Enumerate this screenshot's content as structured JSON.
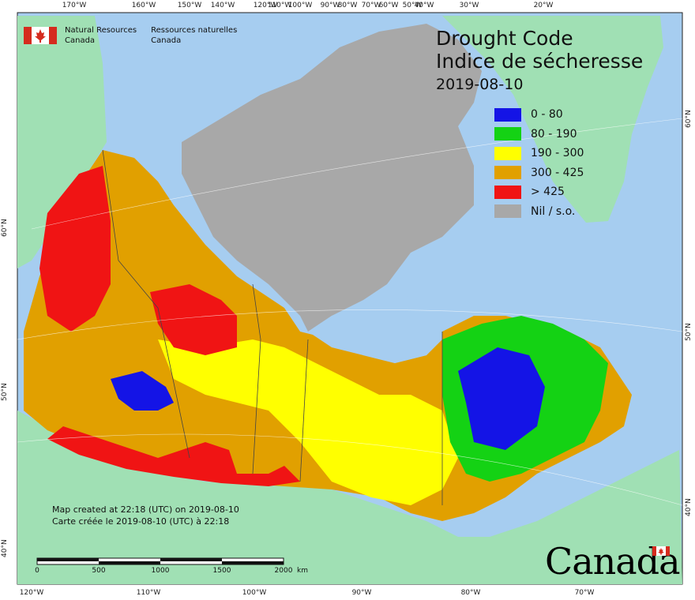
{
  "map": {
    "title_en": "Drought Code",
    "title_fr": "Indice de sécheresse",
    "date": "2019-08-10"
  },
  "legend": [
    {
      "label": "0 - 80",
      "color": "#1414e6"
    },
    {
      "label": "80 - 190",
      "color": "#14d214"
    },
    {
      "label": "190 - 300",
      "color": "#ffff00"
    },
    {
      "label": "300 - 425",
      "color": "#e1a000"
    },
    {
      "label": "> 425",
      "color": "#f01414"
    },
    {
      "label": "Nil / s.o.",
      "color": "#a8a8a8"
    }
  ],
  "agency": {
    "en_line1": "Natural Resources",
    "en_line2": "Canada",
    "fr_line1": "Ressources naturelles",
    "fr_line2": "Canada"
  },
  "credits": {
    "en": "Map created at 22:18 (UTC) on 2019-08-10",
    "fr": "Carte créée le 2019-08-10 (UTC) à 22:18"
  },
  "scale": {
    "labels": [
      "0",
      "500",
      "1000",
      "1500",
      "2000"
    ],
    "unit": "km"
  },
  "graticule": {
    "top": [
      "170°W",
      "160°W",
      "150°W",
      "140°W",
      "120°W",
      "110°W",
      "100°W",
      "90°W",
      "80°W",
      "70°W",
      "60°W",
      "50°W",
      "40°W",
      "30°W",
      "20°W"
    ],
    "bottom": [
      "120°W",
      "110°W",
      "100°W",
      "90°W",
      "80°W",
      "70°W"
    ],
    "left": [
      "60°N",
      "50°N",
      "40°N"
    ],
    "right": [
      "60°N",
      "50°N",
      "40°N"
    ]
  },
  "wordmark": "Canada",
  "colors": {
    "ocean": "#a6cdf0",
    "foreign_land": "#a0e0b4",
    "no_data": "#a8a8a8",
    "lakes": "#a6cdf0"
  }
}
